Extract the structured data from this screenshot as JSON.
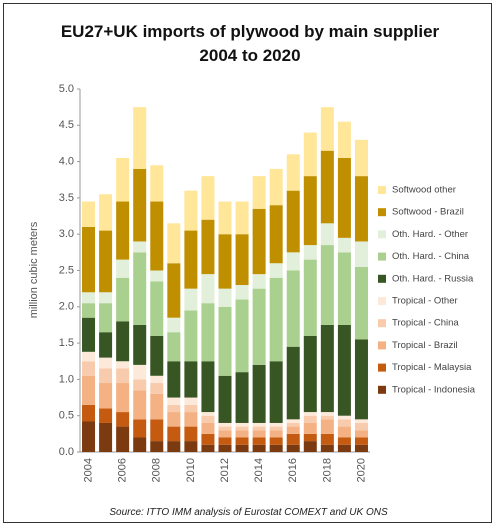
{
  "chart_data": {
    "type": "stacked_bar",
    "title": "EU27+UK imports of plywood by main supplier 2004 to 2020",
    "y_label": "million cubic meters",
    "source": "Source: ITTO IMM analysis of Eurostat COMEXT and UK ONS",
    "categories": [
      "2004",
      null,
      "2006",
      null,
      "2008",
      null,
      "2010",
      null,
      "2012",
      null,
      "2014",
      null,
      "2016",
      null,
      "2018",
      null,
      "2020"
    ],
    "series": [
      {
        "name": "Tropical - Indonesia",
        "color": "#7b3a10",
        "values": [
          0.42,
          0.4,
          0.35,
          0.2,
          0.15,
          0.15,
          0.15,
          0.1,
          0.1,
          0.1,
          0.1,
          0.1,
          0.1,
          0.15,
          0.1,
          0.1,
          0.1
        ]
      },
      {
        "name": "Tropical - Malaysia",
        "color": "#c55a11",
        "values": [
          0.23,
          0.2,
          0.2,
          0.25,
          0.3,
          0.2,
          0.2,
          0.15,
          0.1,
          0.1,
          0.1,
          0.1,
          0.15,
          0.1,
          0.15,
          0.1,
          0.1
        ]
      },
      {
        "name": "Tropical - Brazil",
        "color": "#f4b183",
        "values": [
          0.4,
          0.35,
          0.4,
          0.4,
          0.35,
          0.2,
          0.2,
          0.15,
          0.1,
          0.1,
          0.1,
          0.1,
          0.1,
          0.15,
          0.2,
          0.15,
          0.1
        ]
      },
      {
        "name": "Tropical - China",
        "color": "#f8cbad",
        "values": [
          0.2,
          0.2,
          0.2,
          0.15,
          0.15,
          0.1,
          0.1,
          0.1,
          0.05,
          0.05,
          0.05,
          0.05,
          0.05,
          0.1,
          0.05,
          0.1,
          0.1
        ]
      },
      {
        "name": "Tropical - Other",
        "color": "#fde9d9",
        "values": [
          0.13,
          0.15,
          0.1,
          0.2,
          0.1,
          0.1,
          0.1,
          0.05,
          0.05,
          0.05,
          0.05,
          0.05,
          0.05,
          0.05,
          0.05,
          0.05,
          0.05
        ]
      },
      {
        "name": "Oth. Hard. - Russia",
        "color": "#375623",
        "values": [
          0.47,
          0.35,
          0.55,
          0.55,
          0.55,
          0.5,
          0.5,
          0.7,
          0.65,
          0.7,
          0.8,
          0.85,
          1.0,
          1.05,
          1.2,
          1.25,
          1.1
        ]
      },
      {
        "name": "Oth. Hard. - China",
        "color": "#a9d08e",
        "values": [
          0.2,
          0.4,
          0.6,
          1.0,
          0.75,
          0.4,
          0.7,
          0.8,
          0.95,
          1.0,
          1.05,
          1.15,
          1.05,
          1.05,
          1.1,
          1.0,
          1.0
        ]
      },
      {
        "name": "Oth. Hard. - Other",
        "color": "#e2efda",
        "values": [
          0.15,
          0.15,
          0.25,
          0.15,
          0.15,
          0.2,
          0.3,
          0.4,
          0.25,
          0.2,
          0.2,
          0.2,
          0.25,
          0.2,
          0.3,
          0.2,
          0.35
        ]
      },
      {
        "name": "Softwood - Brazil",
        "color": "#bf8f00",
        "values": [
          0.9,
          0.85,
          0.8,
          1.0,
          0.95,
          0.75,
          0.8,
          0.75,
          0.75,
          0.7,
          0.9,
          0.8,
          0.85,
          0.95,
          1.0,
          1.1,
          0.9
        ]
      },
      {
        "name": "Softwood other",
        "color": "#ffe699",
        "values": [
          0.35,
          0.5,
          0.6,
          0.85,
          0.5,
          0.55,
          0.55,
          0.6,
          0.45,
          0.45,
          0.45,
          0.5,
          0.5,
          0.6,
          0.6,
          0.5,
          0.5
        ]
      }
    ],
    "ylim": [
      0,
      5
    ],
    "yticks": [
      {
        "value": 0,
        "label": "0.0"
      },
      {
        "value": 0.5,
        "label": "0.5"
      },
      {
        "value": 1,
        "label": "1.0"
      },
      {
        "value": 1.5,
        "label": "1.5"
      },
      {
        "value": 2,
        "label": "2.0"
      },
      {
        "value": 2.5,
        "label": "2.5"
      },
      {
        "value": 3,
        "label": "3.0"
      },
      {
        "value": 3.5,
        "label": "3.5"
      },
      {
        "value": 4,
        "label": "4.0"
      },
      {
        "value": 4.5,
        "label": "4.5"
      },
      {
        "value": 5,
        "label": "5.0"
      }
    ],
    "legend": "right"
  }
}
